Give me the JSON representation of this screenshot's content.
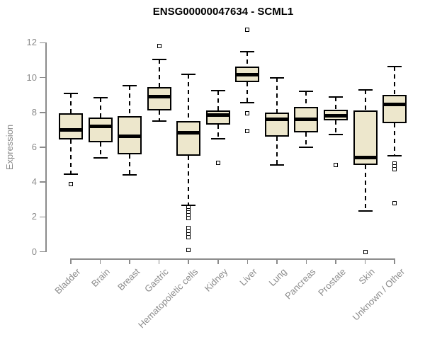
{
  "title": "ENSG00000047634 - SCML1",
  "chart_data": {
    "type": "boxplot",
    "title": "ENSG00000047634 - SCML1",
    "xlabel": "",
    "ylabel": "Expression",
    "ylim": [
      0,
      12
    ],
    "yticks": [
      0,
      2,
      4,
      6,
      8,
      10,
      12
    ],
    "grid": false,
    "legend": "none",
    "categories": [
      "Bladder",
      "Brain",
      "Breast",
      "Gastric",
      "Hematopoietic cells",
      "Kidney",
      "Liver",
      "Lung",
      "Pancreas",
      "Prostate",
      "Skin",
      "Unknown / Other"
    ],
    "series": [
      {
        "category": "Bladder",
        "whisker_low": 4.45,
        "q1": 6.45,
        "median": 7.0,
        "q3": 7.95,
        "whisker_high": 9.1,
        "outliers": [
          3.9
        ]
      },
      {
        "category": "Brain",
        "whisker_low": 5.4,
        "q1": 6.3,
        "median": 7.2,
        "q3": 7.7,
        "whisker_high": 8.85,
        "outliers": []
      },
      {
        "category": "Breast",
        "whisker_low": 4.4,
        "q1": 5.6,
        "median": 6.65,
        "q3": 7.8,
        "whisker_high": 9.55,
        "outliers": []
      },
      {
        "category": "Gastric",
        "whisker_low": 7.5,
        "q1": 8.1,
        "median": 8.9,
        "q3": 9.45,
        "whisker_high": 11.05,
        "outliers": [
          11.8
        ]
      },
      {
        "category": "Hematopoietic cells",
        "whisker_low": 2.65,
        "q1": 5.5,
        "median": 6.85,
        "q3": 7.5,
        "whisker_high": 10.2,
        "outliers": [
          2.55,
          2.4,
          2.25,
          2.1,
          1.95,
          1.35,
          1.15,
          1.0,
          0.85,
          0.1
        ]
      },
      {
        "category": "Kidney",
        "whisker_low": 6.5,
        "q1": 7.3,
        "median": 7.85,
        "q3": 8.1,
        "whisker_high": 9.25,
        "outliers": [
          5.1
        ]
      },
      {
        "category": "Liver",
        "whisker_low": 8.55,
        "q1": 9.75,
        "median": 10.15,
        "q3": 10.65,
        "whisker_high": 11.5,
        "outliers": [
          12.75,
          7.95,
          6.95
        ]
      },
      {
        "category": "Lung",
        "whisker_low": 5.0,
        "q1": 6.6,
        "median": 7.6,
        "q3": 8.0,
        "whisker_high": 10.0,
        "outliers": []
      },
      {
        "category": "Pancreas",
        "whisker_low": 6.0,
        "q1": 6.85,
        "median": 7.6,
        "q3": 8.3,
        "whisker_high": 9.2,
        "outliers": []
      },
      {
        "category": "Prostate",
        "whisker_low": 6.75,
        "q1": 7.55,
        "median": 7.8,
        "q3": 8.15,
        "whisker_high": 8.9,
        "outliers": [
          5.0
        ]
      },
      {
        "category": "Skin",
        "whisker_low": 2.35,
        "q1": 5.0,
        "median": 5.4,
        "q3": 8.1,
        "whisker_high": 9.3,
        "outliers": [
          0.0
        ]
      },
      {
        "category": "Unknown / Other",
        "whisker_low": 5.5,
        "q1": 7.4,
        "median": 8.45,
        "q3": 9.0,
        "whisker_high": 10.65,
        "outliers": [
          5.05,
          4.9,
          4.75,
          2.8
        ]
      }
    ],
    "colors": {
      "box_fill": "#EDE7CC",
      "box_stroke": "#000000",
      "median": "#000000",
      "axis": "#8B8B8B",
      "tick_label": "#8B8B8B",
      "title": "#000000",
      "background": "#FFFFFF"
    }
  }
}
